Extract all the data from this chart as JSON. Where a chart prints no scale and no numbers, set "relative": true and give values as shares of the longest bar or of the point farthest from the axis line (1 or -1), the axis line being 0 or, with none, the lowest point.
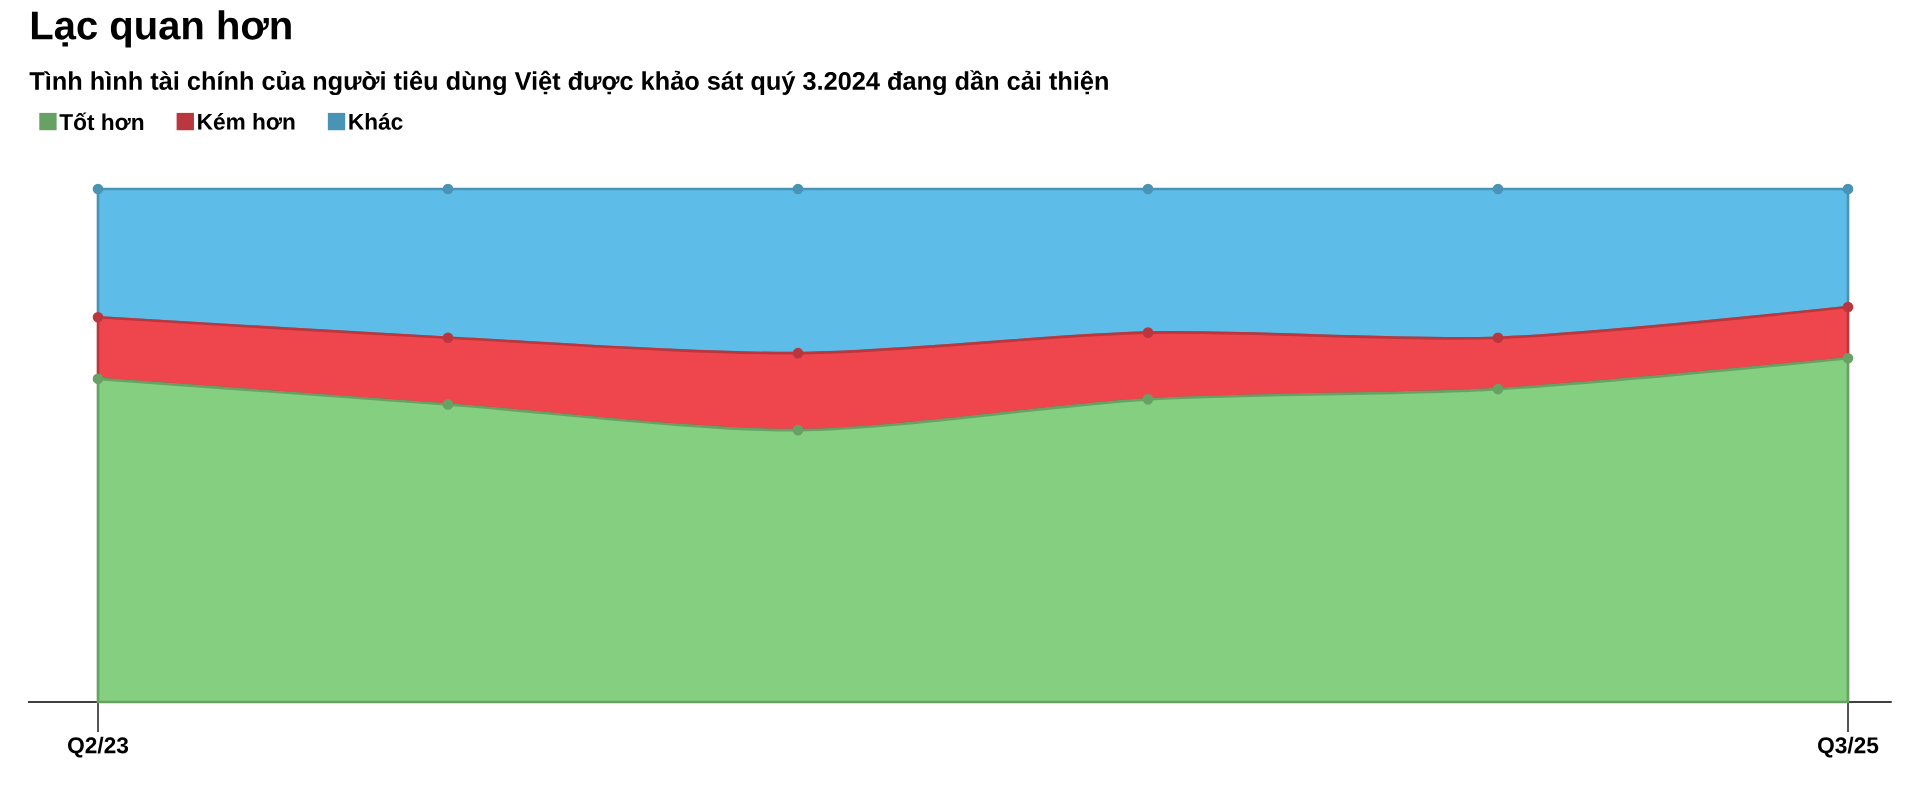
{
  "chart_data": {
    "type": "area",
    "title": "Lạc quan hơn",
    "subtitle": "Tình hình tài chính của người tiêu dùng Việt được khảo sát quý 3.2024 đang dần cải thiện",
    "categories": [
      "Q2/23",
      null,
      null,
      null,
      null,
      "Q3/25"
    ],
    "stacked": true,
    "relative": true,
    "legend": "top left",
    "marker": "circle",
    "series": [
      {
        "name": "Tốt hơn",
        "color": "#85cf80",
        "values": [
          0.63,
          0.58,
          0.53,
          0.59,
          0.61,
          0.67
        ]
      },
      {
        "name": "Kém hơn",
        "color": "#ef464e",
        "values": [
          0.12,
          0.13,
          0.15,
          0.13,
          0.1,
          0.1
        ]
      },
      {
        "name": "Khác",
        "color": "#5ebde8",
        "values": [
          0.25,
          0.29,
          0.32,
          0.28,
          0.29,
          0.23
        ]
      }
    ]
  }
}
